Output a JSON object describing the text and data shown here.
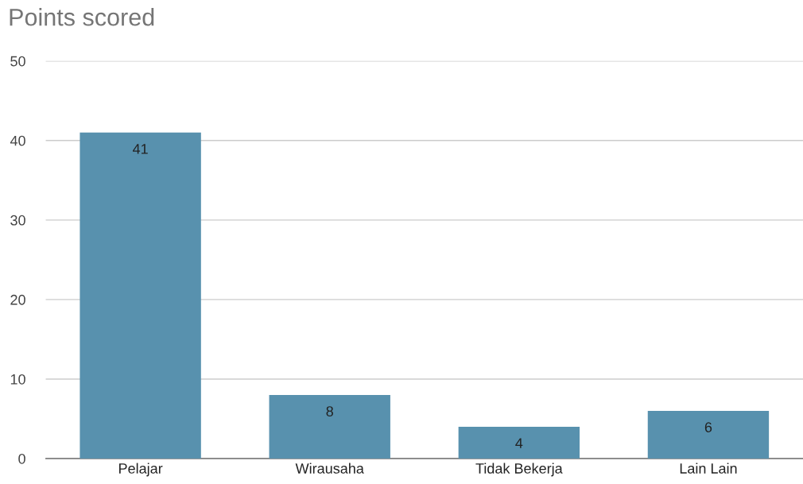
{
  "chart_data": {
    "type": "bar",
    "title": "Points scored",
    "categories": [
      "Pelajar",
      "Wirausaha",
      "Tidak Bekerja",
      "Lain Lain"
    ],
    "values": [
      41,
      8,
      4,
      6
    ],
    "color": "#5891ae",
    "ylim": [
      0,
      50
    ],
    "yticks": [
      0,
      10,
      20,
      30,
      40,
      50
    ],
    "grid": "y",
    "data_labels": true
  }
}
